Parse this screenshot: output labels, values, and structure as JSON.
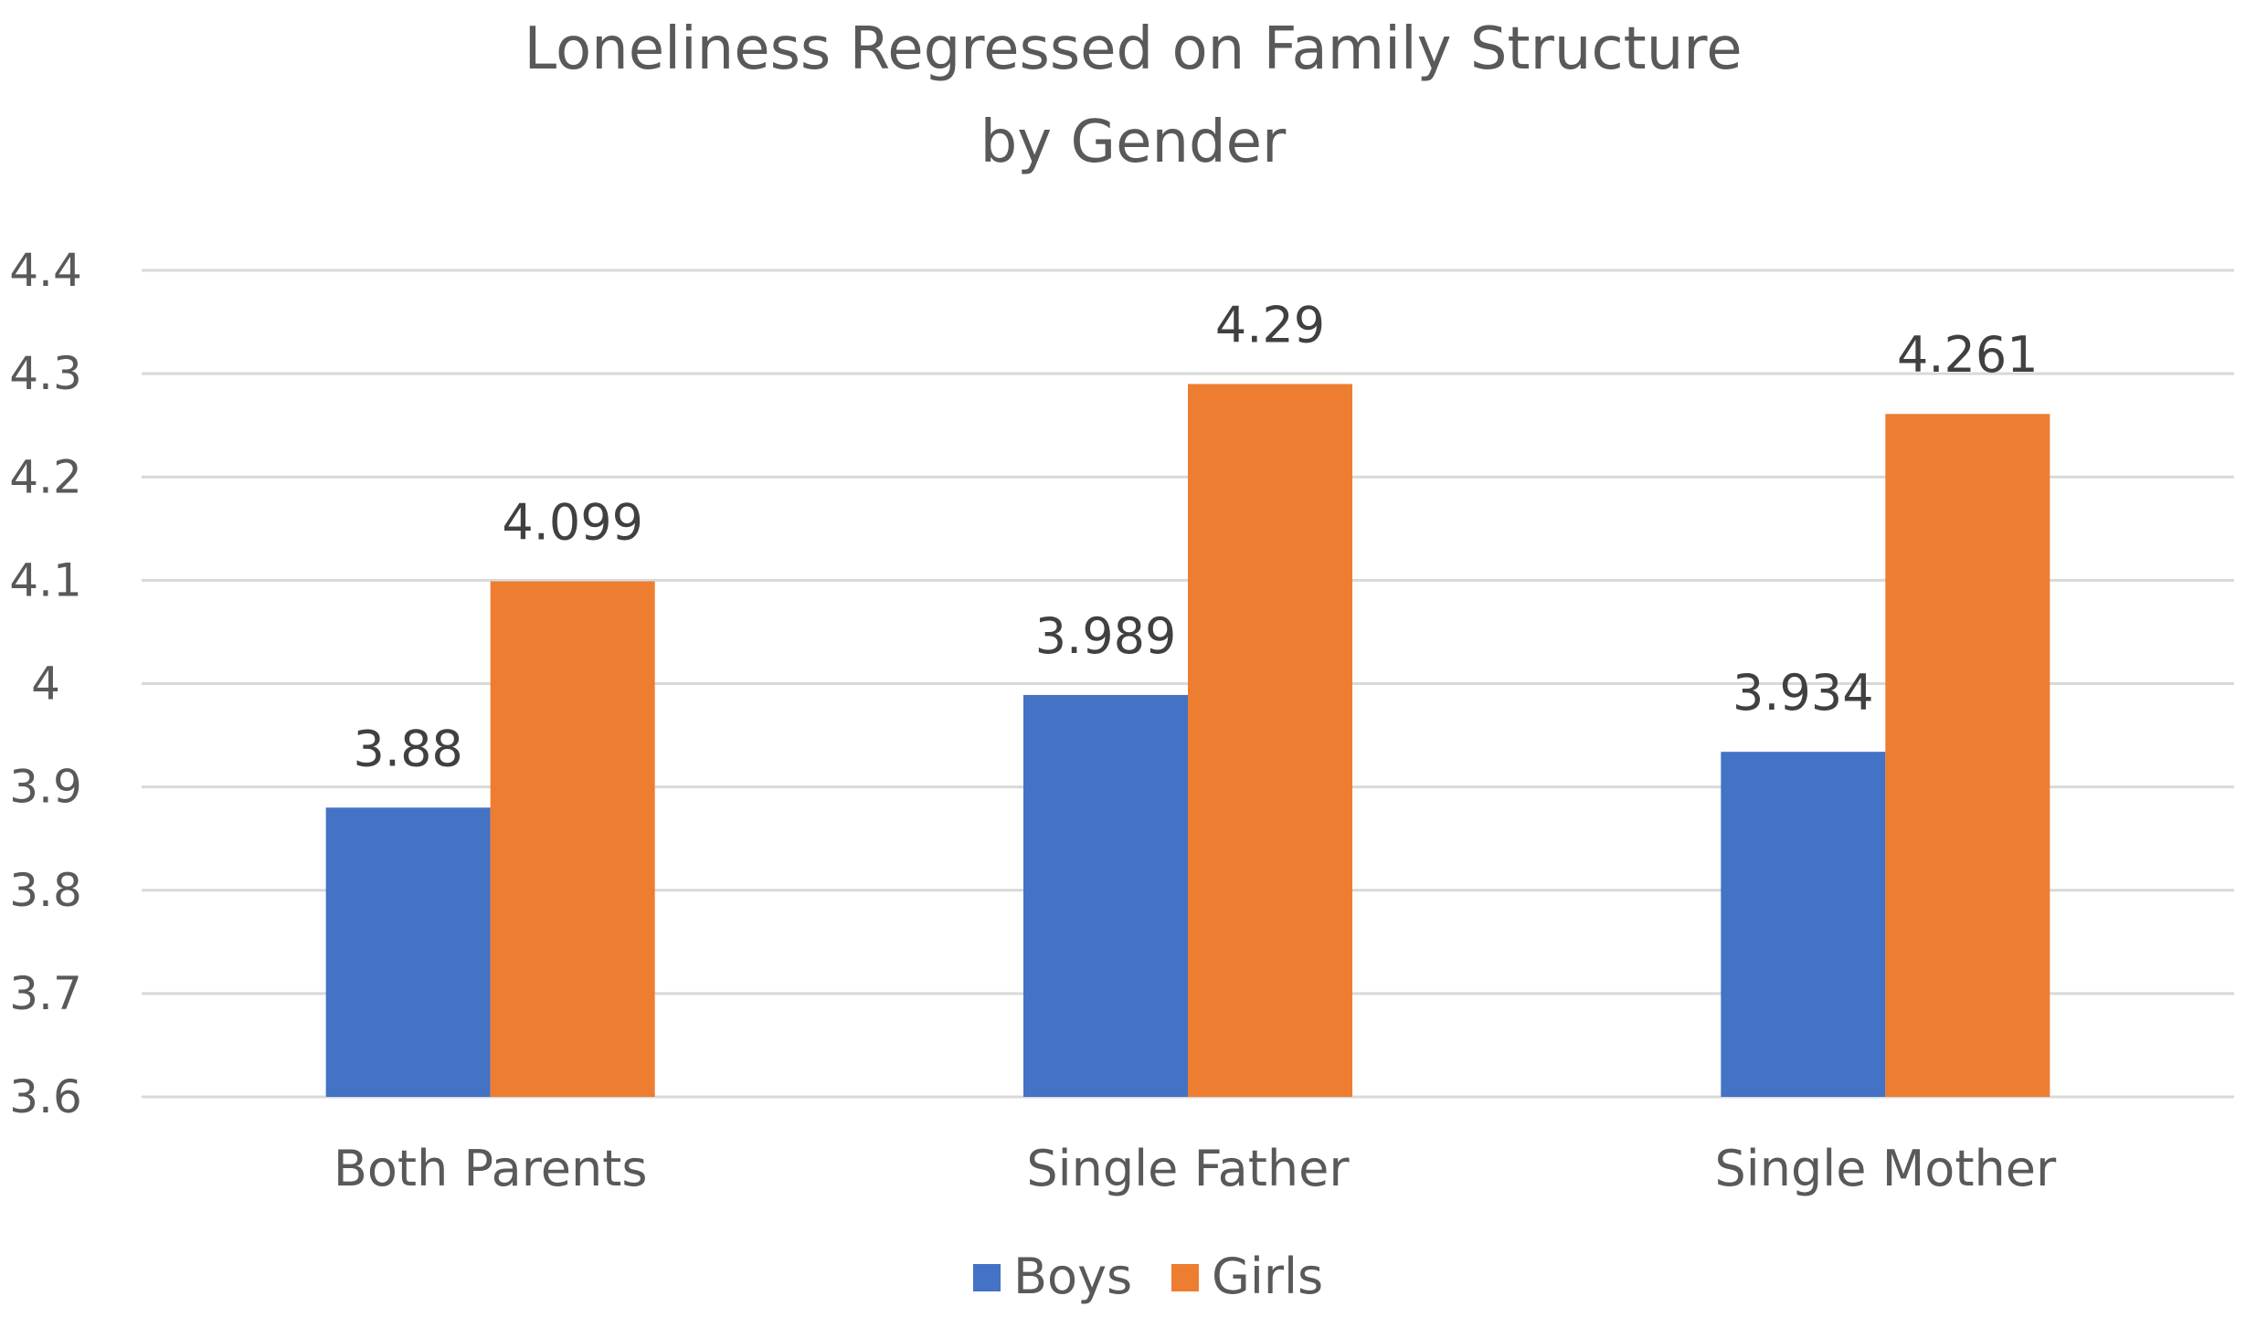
{
  "chart_data": {
    "type": "bar",
    "title_lines": [
      "Loneliness Regressed on Family Structure",
      "by Gender"
    ],
    "categories": [
      "Both Parents",
      "Single Father",
      "Single Mother"
    ],
    "series": [
      {
        "name": "Boys",
        "values": [
          3.88,
          3.989,
          3.934
        ],
        "labels": [
          "3.88",
          "3.989",
          "3.934"
        ],
        "color": "#4472C4"
      },
      {
        "name": "Girls",
        "values": [
          4.099,
          4.29,
          4.261
        ],
        "labels": [
          "4.099",
          "4.29",
          "4.261"
        ],
        "color": "#ED7D31"
      }
    ],
    "y_ticks": [
      3.6,
      3.7,
      3.8,
      3.9,
      4.0,
      4.1,
      4.2,
      4.3,
      4.4
    ],
    "y_tick_labels": [
      "3.6",
      "3.7",
      "3.8",
      "3.9",
      "4",
      "4.1",
      "4.2",
      "4.3",
      "4.4"
    ],
    "ylim": [
      3.6,
      4.4
    ],
    "xlabel": "",
    "ylabel": "",
    "grid": true,
    "legend_position": "bottom"
  }
}
